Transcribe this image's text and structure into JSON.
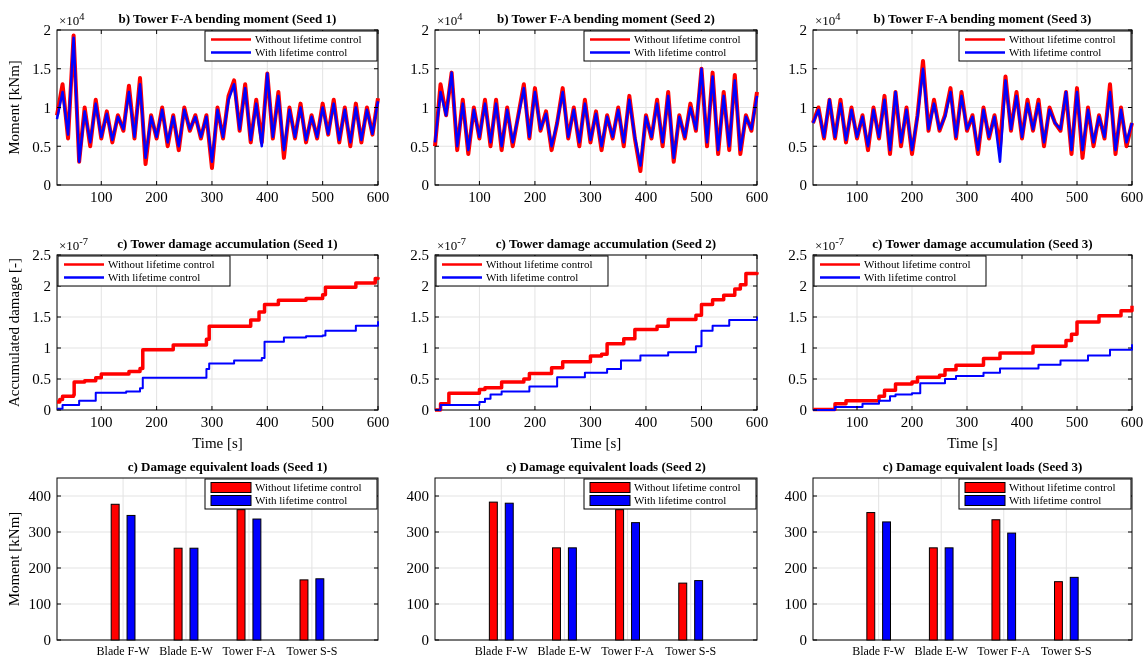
{
  "chart_data": [
    {
      "type": "line",
      "title": "b) Tower F-A bending moment (Seed 1)",
      "ylabel": "Moment [kNm]",
      "annotations": [
        "×10$^{4}$"
      ],
      "xlim": [
        20,
        600
      ],
      "xticks": [
        100,
        200,
        300,
        400,
        500,
        600
      ],
      "ylim": [
        0,
        2
      ],
      "yticks": [
        0,
        0.5,
        1,
        1.5,
        2
      ],
      "grid": true,
      "legend": "top right",
      "x": [
        20,
        30,
        40,
        50,
        60,
        70,
        80,
        90,
        100,
        110,
        120,
        130,
        140,
        150,
        160,
        170,
        180,
        190,
        200,
        210,
        220,
        230,
        240,
        250,
        260,
        270,
        280,
        290,
        300,
        310,
        320,
        330,
        340,
        350,
        360,
        370,
        380,
        390,
        400,
        410,
        420,
        430,
        440,
        450,
        460,
        470,
        480,
        490,
        500,
        510,
        520,
        530,
        540,
        550,
        560,
        570,
        580,
        590,
        600
      ],
      "series": [
        {
          "name": "Without lifetime control",
          "color": "#ff0000",
          "values": [
            0.9,
            1.3,
            0.6,
            1.93,
            0.3,
            1.0,
            0.5,
            1.1,
            0.6,
            0.95,
            0.55,
            0.9,
            0.7,
            1.28,
            0.6,
            1.38,
            0.27,
            0.9,
            0.6,
            1.0,
            0.5,
            0.9,
            0.45,
            1.0,
            0.7,
            0.9,
            0.6,
            0.9,
            0.22,
            1.0,
            0.6,
            1.15,
            1.35,
            0.7,
            1.3,
            0.55,
            1.1,
            0.55,
            1.44,
            0.6,
            1.2,
            0.35,
            1.0,
            0.6,
            1.05,
            0.55,
            0.9,
            0.6,
            1.05,
            0.65,
            1.1,
            0.55,
            1.0,
            0.5,
            1.05,
            0.55,
            1.0,
            0.65,
            1.12
          ]
        },
        {
          "name": "With lifetime control",
          "color": "#0000ff",
          "values": [
            0.85,
            1.2,
            0.65,
            1.9,
            0.3,
            0.95,
            0.55,
            1.05,
            0.62,
            0.92,
            0.58,
            0.88,
            0.72,
            1.2,
            0.62,
            1.3,
            0.35,
            0.88,
            0.62,
            0.97,
            0.55,
            0.88,
            0.5,
            0.97,
            0.72,
            0.88,
            0.62,
            0.88,
            0.3,
            0.97,
            0.62,
            1.1,
            1.3,
            0.72,
            1.25,
            0.58,
            1.05,
            0.5,
            1.44,
            0.62,
            1.15,
            0.45,
            0.97,
            0.62,
            1.0,
            0.58,
            0.88,
            0.62,
            1.0,
            0.66,
            1.05,
            0.58,
            0.97,
            0.55,
            1.0,
            0.58,
            0.97,
            0.66,
            1.08
          ]
        }
      ]
    },
    {
      "type": "line",
      "title": "b) Tower F-A bending moment (Seed 2)",
      "annotations": [
        "×10$^{4}$"
      ],
      "xlim": [
        20,
        600
      ],
      "xticks": [
        100,
        200,
        300,
        400,
        500,
        600
      ],
      "ylim": [
        0,
        2
      ],
      "yticks": [
        0,
        0.5,
        1,
        1.5,
        2
      ],
      "grid": true,
      "legend": "top right",
      "x": [
        20,
        30,
        40,
        50,
        60,
        70,
        80,
        90,
        100,
        110,
        120,
        130,
        140,
        150,
        160,
        170,
        180,
        190,
        200,
        210,
        220,
        230,
        240,
        250,
        260,
        270,
        280,
        290,
        300,
        310,
        320,
        330,
        340,
        350,
        360,
        370,
        380,
        390,
        400,
        410,
        420,
        430,
        440,
        450,
        460,
        470,
        480,
        490,
        500,
        510,
        520,
        530,
        540,
        550,
        560,
        570,
        580,
        590,
        600
      ],
      "series": [
        {
          "name": "Without lifetime control",
          "color": "#ff0000",
          "values": [
            0.5,
            1.3,
            0.9,
            1.45,
            0.45,
            1.1,
            0.4,
            1.0,
            0.6,
            1.1,
            0.5,
            1.1,
            0.45,
            1.0,
            0.5,
            0.9,
            1.3,
            0.6,
            1.25,
            0.7,
            0.95,
            0.45,
            0.8,
            1.25,
            0.6,
            1.0,
            0.5,
            1.1,
            0.55,
            0.95,
            0.45,
            0.9,
            0.6,
            1.0,
            0.5,
            1.15,
            0.6,
            0.18,
            0.9,
            0.6,
            1.1,
            0.5,
            1.2,
            0.3,
            0.9,
            0.6,
            1.05,
            0.7,
            1.5,
            0.5,
            1.45,
            0.4,
            1.2,
            0.45,
            1.42,
            0.4,
            0.9,
            0.7,
            1.2
          ]
        },
        {
          "name": "With lifetime control",
          "color": "#0000ff",
          "values": [
            0.55,
            1.2,
            0.9,
            1.45,
            0.5,
            1.05,
            0.45,
            0.97,
            0.62,
            1.05,
            0.55,
            1.05,
            0.5,
            0.97,
            0.55,
            0.88,
            1.25,
            0.62,
            1.2,
            0.72,
            0.92,
            0.5,
            0.8,
            1.2,
            0.62,
            0.97,
            0.55,
            1.05,
            0.58,
            0.92,
            0.5,
            0.88,
            0.62,
            0.97,
            0.55,
            1.1,
            0.62,
            0.25,
            0.88,
            0.62,
            1.05,
            0.55,
            1.15,
            0.35,
            0.88,
            0.62,
            1.0,
            0.72,
            1.5,
            0.55,
            1.4,
            0.45,
            1.15,
            0.5,
            1.35,
            0.45,
            0.88,
            0.72,
            1.15
          ]
        }
      ]
    },
    {
      "type": "line",
      "title": "b) Tower F-A bending moment (Seed 3)",
      "annotations": [
        "×10$^{4}$"
      ],
      "xlim": [
        20,
        600
      ],
      "xticks": [
        100,
        200,
        300,
        400,
        500,
        600
      ],
      "ylim": [
        0,
        2
      ],
      "yticks": [
        0,
        0.5,
        1,
        1.5,
        2
      ],
      "grid": true,
      "legend": "top right",
      "x": [
        20,
        30,
        40,
        50,
        60,
        70,
        80,
        90,
        100,
        110,
        120,
        130,
        140,
        150,
        160,
        170,
        180,
        190,
        200,
        210,
        220,
        230,
        240,
        250,
        260,
        270,
        280,
        290,
        300,
        310,
        320,
        330,
        340,
        350,
        360,
        370,
        380,
        390,
        400,
        410,
        420,
        430,
        440,
        450,
        460,
        470,
        480,
        490,
        500,
        510,
        520,
        530,
        540,
        550,
        560,
        570,
        580,
        590,
        600
      ],
      "series": [
        {
          "name": "Without lifetime control",
          "color": "#ff0000",
          "values": [
            0.8,
            1.0,
            0.6,
            1.1,
            0.6,
            1.1,
            0.55,
            1.0,
            0.6,
            0.9,
            0.45,
            1.0,
            0.6,
            1.15,
            0.4,
            1.2,
            0.5,
            1.0,
            0.4,
            0.9,
            1.6,
            0.7,
            1.1,
            0.7,
            0.9,
            1.25,
            0.6,
            1.2,
            0.7,
            0.9,
            0.4,
            1.0,
            0.6,
            0.9,
            0.5,
            1.4,
            0.7,
            1.2,
            0.6,
            1.1,
            0.7,
            1.1,
            0.5,
            1.0,
            0.8,
            0.7,
            1.2,
            0.4,
            1.25,
            0.35,
            1.0,
            0.5,
            0.9,
            0.6,
            1.3,
            0.4,
            1.0,
            0.5,
            0.8
          ]
        },
        {
          "name": "With lifetime control",
          "color": "#0000ff",
          "values": [
            0.8,
            0.97,
            0.62,
            1.1,
            0.62,
            1.05,
            0.58,
            0.97,
            0.62,
            0.88,
            0.5,
            0.97,
            0.62,
            1.1,
            0.45,
            1.2,
            0.55,
            0.97,
            0.45,
            0.88,
            1.5,
            0.72,
            1.05,
            0.72,
            0.88,
            1.2,
            0.62,
            1.15,
            0.72,
            0.88,
            0.45,
            0.97,
            0.62,
            0.88,
            0.3,
            1.35,
            0.72,
            1.15,
            0.62,
            1.05,
            0.72,
            1.05,
            0.55,
            0.97,
            0.8,
            0.72,
            1.2,
            0.45,
            1.2,
            0.45,
            0.97,
            0.55,
            0.88,
            0.62,
            1.2,
            0.45,
            0.97,
            0.55,
            0.8
          ]
        }
      ]
    },
    {
      "type": "step",
      "title": "c) Tower damage accumulation (Seed 1)",
      "xlabel": "Time [s]",
      "ylabel": "Accumulated damage [-]",
      "annotations": [
        "×10$^{-7}$"
      ],
      "xlim": [
        20,
        600
      ],
      "xticks": [
        100,
        200,
        300,
        400,
        500,
        600
      ],
      "ylim": [
        0,
        2.5
      ],
      "yticks": [
        0,
        0.5,
        1,
        1.5,
        2,
        2.5
      ],
      "grid": true,
      "legend": "top left",
      "series": [
        {
          "name": "Without lifetime control",
          "color": "#ff0000",
          "x": [
            20,
            25,
            30,
            50,
            51,
            70,
            90,
            100,
            150,
            170,
            175,
            230,
            290,
            295,
            370,
            385,
            395,
            420,
            470,
            500,
            505,
            560,
            595,
            600
          ],
          "values": [
            0.13,
            0.17,
            0.22,
            0.24,
            0.45,
            0.47,
            0.52,
            0.58,
            0.62,
            0.67,
            0.97,
            1.05,
            1.14,
            1.35,
            1.45,
            1.58,
            1.7,
            1.77,
            1.8,
            1.86,
            1.98,
            2.05,
            2.12,
            2.14
          ]
        },
        {
          "name": "With lifetime control",
          "color": "#0000ff",
          "x": [
            20,
            30,
            60,
            90,
            145,
            170,
            175,
            290,
            295,
            340,
            390,
            395,
            430,
            470,
            500,
            505,
            560,
            600
          ],
          "values": [
            0.02,
            0.08,
            0.15,
            0.28,
            0.3,
            0.35,
            0.52,
            0.66,
            0.75,
            0.8,
            0.84,
            1.1,
            1.17,
            1.19,
            1.2,
            1.28,
            1.36,
            1.43
          ]
        }
      ]
    },
    {
      "type": "step",
      "title": "c) Tower damage accumulation (Seed 2)",
      "xlabel": "Time [s]",
      "annotations": [
        "×10$^{-7}$"
      ],
      "xlim": [
        20,
        600
      ],
      "xticks": [
        100,
        200,
        300,
        400,
        500,
        600
      ],
      "ylim": [
        0,
        2.5
      ],
      "yticks": [
        0,
        0.5,
        1,
        1.5,
        2,
        2.5
      ],
      "grid": true,
      "legend": "top left",
      "series": [
        {
          "name": "Without lifetime control",
          "color": "#ff0000",
          "x": [
            20,
            30,
            45,
            100,
            110,
            140,
            180,
            190,
            230,
            250,
            300,
            320,
            330,
            360,
            380,
            420,
            440,
            490,
            500,
            520,
            540,
            560,
            570,
            580,
            600
          ],
          "values": [
            0,
            0.1,
            0.27,
            0.33,
            0.36,
            0.45,
            0.5,
            0.59,
            0.68,
            0.78,
            0.87,
            0.9,
            1.07,
            1.15,
            1.3,
            1.35,
            1.46,
            1.53,
            1.7,
            1.78,
            1.85,
            1.95,
            2.02,
            2.2,
            2.22
          ]
        },
        {
          "name": "With lifetime control",
          "color": "#0000ff",
          "x": [
            20,
            30,
            100,
            110,
            120,
            140,
            190,
            240,
            290,
            330,
            355,
            390,
            440,
            490,
            500,
            520,
            550,
            600
          ],
          "values": [
            0,
            0.08,
            0.13,
            0.18,
            0.25,
            0.3,
            0.38,
            0.53,
            0.6,
            0.66,
            0.8,
            0.88,
            0.93,
            1.03,
            1.28,
            1.36,
            1.45,
            1.51
          ]
        }
      ]
    },
    {
      "type": "step",
      "title": "c) Tower damage accumulation (Seed 3)",
      "xlabel": "Time [s]",
      "annotations": [
        "×10$^{-7}$"
      ],
      "xlim": [
        20,
        600
      ],
      "xticks": [
        100,
        200,
        300,
        400,
        500,
        600
      ],
      "ylim": [
        0,
        2.5
      ],
      "yticks": [
        0,
        0.5,
        1,
        1.5,
        2,
        2.5
      ],
      "grid": true,
      "legend": "top left",
      "series": [
        {
          "name": "Without lifetime control",
          "color": "#ff0000",
          "x": [
            20,
            60,
            80,
            140,
            150,
            170,
            200,
            210,
            250,
            260,
            280,
            330,
            360,
            420,
            480,
            490,
            500,
            540,
            580,
            600
          ],
          "values": [
            0.01,
            0.1,
            0.15,
            0.22,
            0.32,
            0.42,
            0.45,
            0.53,
            0.56,
            0.65,
            0.72,
            0.83,
            0.92,
            1.03,
            1.12,
            1.22,
            1.42,
            1.52,
            1.6,
            1.68
          ]
        },
        {
          "name": "With lifetime control",
          "color": "#0000ff",
          "x": [
            20,
            60,
            110,
            140,
            160,
            170,
            200,
            215,
            260,
            280,
            330,
            360,
            430,
            470,
            520,
            560,
            600
          ],
          "values": [
            0,
            0.05,
            0.1,
            0.15,
            0.22,
            0.25,
            0.27,
            0.43,
            0.5,
            0.55,
            0.6,
            0.67,
            0.73,
            0.8,
            0.88,
            0.97,
            1.06
          ]
        }
      ]
    },
    {
      "type": "bar",
      "title": "c) Damage equivalent loads (Seed 1)",
      "ylabel": "Moment [kNm]",
      "categories": [
        "Blade F-W",
        "Blade E-W",
        "Tower F-A",
        "Tower S-S"
      ],
      "ylim": [
        0,
        450
      ],
      "yticks": [
        0,
        100,
        200,
        300,
        400
      ],
      "grid": true,
      "legend": "top right",
      "series": [
        {
          "name": "Without lifetime control",
          "color": "#ff0000",
          "values": [
            377,
            255,
            362,
            167
          ]
        },
        {
          "name": "With lifetime control",
          "color": "#0000ff",
          "values": [
            346,
            255,
            336,
            170
          ]
        }
      ]
    },
    {
      "type": "bar",
      "title": "c) Damage equivalent loads (Seed 2)",
      "categories": [
        "Blade F-W",
        "Blade E-W",
        "Tower F-A",
        "Tower S-S"
      ],
      "ylim": [
        0,
        450
      ],
      "yticks": [
        0,
        100,
        200,
        300,
        400
      ],
      "grid": true,
      "legend": "top right",
      "series": [
        {
          "name": "Without lifetime control",
          "color": "#ff0000",
          "values": [
            383,
            256,
            362,
            158
          ]
        },
        {
          "name": "With lifetime control",
          "color": "#0000ff",
          "values": [
            380,
            256,
            326,
            165
          ]
        }
      ]
    },
    {
      "type": "bar",
      "title": "c) Damage equivalent loads (Seed 3)",
      "categories": [
        "Blade F-W",
        "Blade E-W",
        "Tower F-A",
        "Tower S-S"
      ],
      "ylim": [
        0,
        450
      ],
      "yticks": [
        0,
        100,
        200,
        300,
        400
      ],
      "grid": true,
      "legend": "top right",
      "series": [
        {
          "name": "Without lifetime control",
          "color": "#ff0000",
          "values": [
            354,
            256,
            334,
            162
          ]
        },
        {
          "name": "With lifetime control",
          "color": "#0000ff",
          "values": [
            328,
            256,
            297,
            174
          ]
        }
      ]
    }
  ]
}
